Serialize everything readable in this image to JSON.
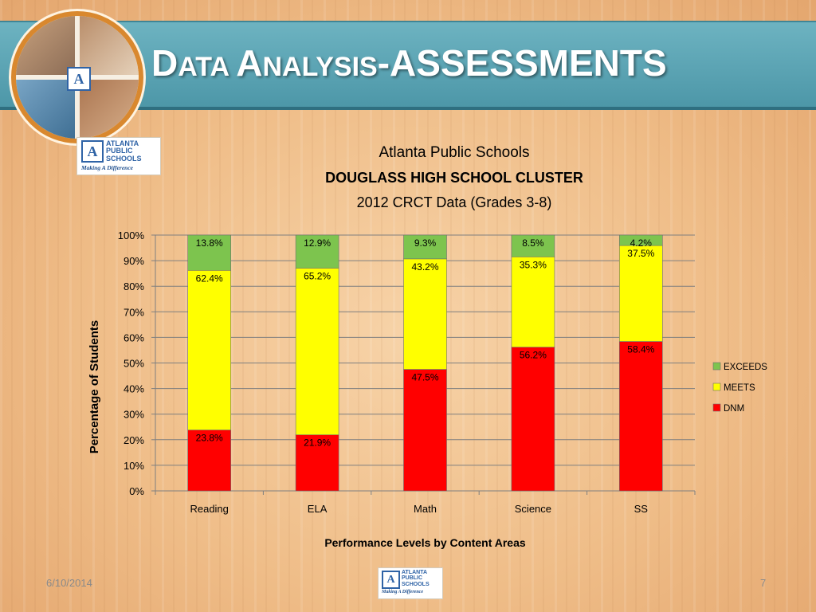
{
  "slide": {
    "title_first_letter": "D",
    "title_rest_1": "ATA ",
    "title_second_letter": "A",
    "title_rest_2": "NALYSIS",
    "title_suffix": "-ASSESSMENTS",
    "date": "6/10/2014",
    "page_number": "7"
  },
  "logo": {
    "line1": "ATLANTA",
    "line2": "PUBLIC",
    "line3": "SCHOOLS",
    "tagline": "Making A Difference",
    "mark": "A"
  },
  "chart_data": {
    "type": "bar",
    "stacked": true,
    "title_line1": "Atlanta Public Schools",
    "title_line2": "DOUGLASS HIGH SCHOOL CLUSTER",
    "title_line3": "2012 CRCT Data (Grades 3-8)",
    "xlabel": "Performance Levels by Content Areas",
    "ylabel": "Percentage of Students",
    "categories": [
      "Reading",
      "ELA",
      "Math",
      "Science",
      "SS"
    ],
    "yticks": [
      "0%",
      "10%",
      "20%",
      "30%",
      "40%",
      "50%",
      "60%",
      "70%",
      "80%",
      "90%",
      "100%"
    ],
    "ylim": [
      0,
      100
    ],
    "grid": true,
    "legend_position": "right",
    "series": [
      {
        "name": "DNM",
        "color": "#ff0000",
        "values": [
          23.8,
          21.9,
          47.5,
          56.2,
          58.4
        ],
        "labels": [
          "23.8%",
          "21.9%",
          "47.5%",
          "56.2%",
          "58.4%"
        ]
      },
      {
        "name": "MEETS",
        "color": "#ffff00",
        "values": [
          62.4,
          65.2,
          43.2,
          35.3,
          37.5
        ],
        "labels": [
          "62.4%",
          "65.2%",
          "43.2%",
          "35.3%",
          "37.5%"
        ]
      },
      {
        "name": "EXCEEDS",
        "color": "#7dc44e",
        "values": [
          13.8,
          12.9,
          9.3,
          8.5,
          4.2
        ],
        "labels": [
          "13.8%",
          "12.9%",
          "9.3%",
          "8.5%",
          "4.2%"
        ]
      }
    ],
    "legend": [
      "EXCEEDS",
      "MEETS",
      "DNM"
    ]
  }
}
